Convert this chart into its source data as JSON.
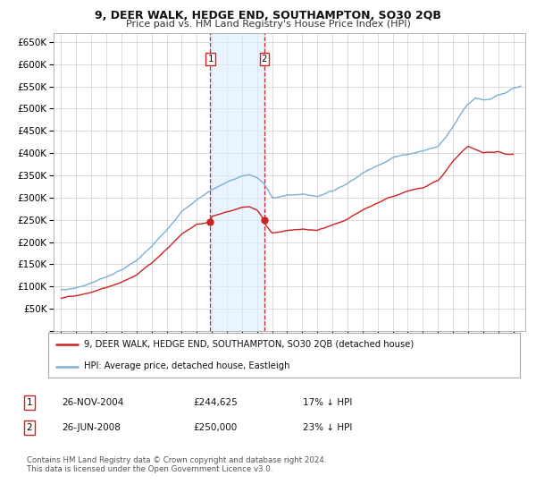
{
  "title": "9, DEER WALK, HEDGE END, SOUTHAMPTON, SO30 2QB",
  "subtitle": "Price paid vs. HM Land Registry's House Price Index (HPI)",
  "ylim": [
    0,
    670000
  ],
  "yticks": [
    0,
    50000,
    100000,
    150000,
    200000,
    250000,
    300000,
    350000,
    400000,
    450000,
    500000,
    550000,
    600000,
    650000
  ],
  "xlim_start": 1994.5,
  "xlim_end": 2025.8,
  "bg_color": "#ffffff",
  "grid_color": "#cccccc",
  "sale1_date": 2004.9,
  "sale1_price": 244625,
  "sale2_date": 2008.48,
  "sale2_price": 250000,
  "legend_line1": "9, DEER WALK, HEDGE END, SOUTHAMPTON, SO30 2QB (detached house)",
  "legend_line2": "HPI: Average price, detached house, Eastleigh",
  "table_row1": [
    "1",
    "26-NOV-2004",
    "£244,625",
    "17% ↓ HPI"
  ],
  "table_row2": [
    "2",
    "26-JUN-2008",
    "£250,000",
    "23% ↓ HPI"
  ],
  "footnote": "Contains HM Land Registry data © Crown copyright and database right 2024.\nThis data is licensed under the Open Government Licence v3.0.",
  "hpi_color": "#7ab0d4",
  "price_color": "#cc2222",
  "shade_color": "#ddeeff",
  "hpi_anchors_x": [
    1995,
    1996,
    1997,
    1998,
    1999,
    2000,
    2001,
    2002,
    2003,
    2004,
    2005,
    2006,
    2007,
    2007.5,
    2008,
    2008.5,
    2009,
    2010,
    2011,
    2012,
    2013,
    2014,
    2015,
    2016,
    2017,
    2018,
    2019,
    2020,
    2020.5,
    2021,
    2021.5,
    2022,
    2022.5,
    2023,
    2023.5,
    2024,
    2024.5,
    2025,
    2025.5
  ],
  "hpi_anchors_y": [
    92000,
    97000,
    108000,
    122000,
    137000,
    158000,
    190000,
    228000,
    268000,
    295000,
    318000,
    335000,
    348000,
    352000,
    345000,
    330000,
    300000,
    305000,
    308000,
    303000,
    315000,
    332000,
    355000,
    372000,
    390000,
    398000,
    405000,
    415000,
    435000,
    460000,
    488000,
    510000,
    525000,
    520000,
    522000,
    530000,
    535000,
    545000,
    550000
  ],
  "price_anchors_x": [
    1995,
    1996,
    1997,
    1998,
    1999,
    2000,
    2001,
    2002,
    2003,
    2004,
    2004.9,
    2005,
    2006,
    2007,
    2007.5,
    2008,
    2008.48,
    2008.6,
    2009,
    2010,
    2011,
    2012,
    2013,
    2014,
    2015,
    2016,
    2017,
    2018,
    2019,
    2020,
    2020.5,
    2021,
    2021.5,
    2022,
    2022.5,
    2023,
    2024,
    2024.5,
    2025
  ],
  "price_anchors_y": [
    75000,
    79000,
    87000,
    98000,
    110000,
    126000,
    153000,
    184000,
    218000,
    240000,
    244625,
    258000,
    268000,
    278000,
    279000,
    272000,
    250000,
    238000,
    220000,
    226000,
    229000,
    226000,
    238000,
    251000,
    272000,
    288000,
    303000,
    315000,
    323000,
    338000,
    358000,
    382000,
    400000,
    415000,
    408000,
    402000,
    403000,
    398000,
    397000
  ]
}
